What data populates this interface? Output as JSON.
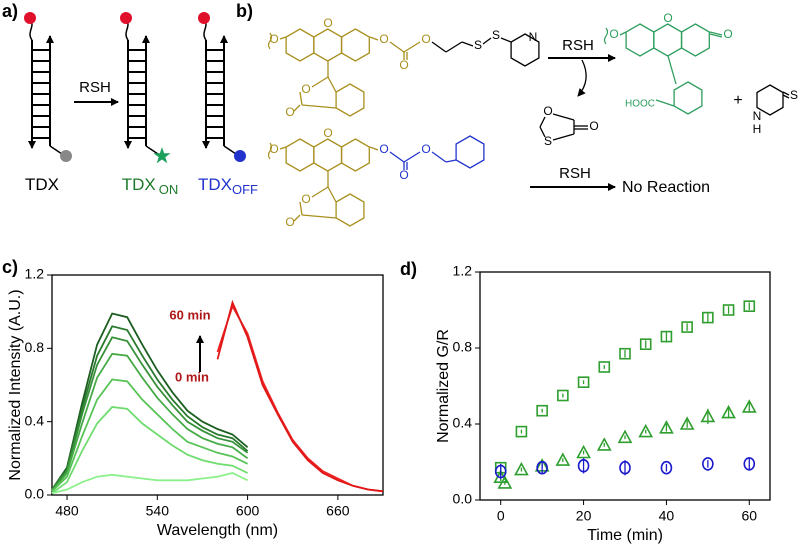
{
  "panels": {
    "a": "a)",
    "b": "b)",
    "c": "c)",
    "d": "d)"
  },
  "panel_a": {
    "arrow_label": "RSH",
    "labels": [
      {
        "main": "TDX"
      },
      {
        "main": "TDX",
        "sub": "ON"
      },
      {
        "main": "TDX",
        "sub": "OFF"
      }
    ]
  },
  "panel_b": {
    "arrow_label_1": "RSH",
    "arrow_label_2": "RSH",
    "no_reaction": "No Reaction",
    "hooc": "HOOC",
    "plus": "+",
    "atoms": [
      "O",
      "O",
      "O",
      "O",
      "O",
      "S",
      "S",
      "N",
      "O",
      "O",
      "O",
      "O",
      "O",
      "O",
      "O",
      "O",
      "O",
      "O",
      "O",
      "O",
      "O",
      "S",
      "O",
      "N",
      "H",
      "S"
    ]
  },
  "chart_data": [
    {
      "type": "line",
      "xlabel": "Wavelength (nm)",
      "ylabel": "Normalized Intensity (A.U.)",
      "annotations": [
        "60 min",
        "0 min"
      ],
      "x": [
        470,
        480,
        490,
        500,
        510,
        520,
        530,
        540,
        550,
        560,
        570,
        580,
        590,
        600,
        610,
        620,
        630,
        640,
        650,
        660,
        670,
        680,
        690
      ],
      "xlim": [
        470,
        690
      ],
      "xticks": [
        480,
        540,
        600,
        660
      ],
      "ylim": [
        0,
        1.2
      ],
      "yticks": [
        {
          "value": 0,
          "label": "0.0"
        },
        0.4,
        0.8,
        1.2
      ],
      "series": [
        {
          "color": "#1b5e20",
          "values": [
            0.03,
            0.15,
            0.5,
            0.82,
            0.99,
            0.97,
            0.82,
            0.68,
            0.56,
            0.46,
            0.4,
            0.36,
            0.33,
            0.26,
            null,
            null,
            null,
            null,
            null,
            null,
            null,
            null,
            null
          ]
        },
        {
          "color": "#2a7a2e",
          "values": [
            0.03,
            0.14,
            0.47,
            0.76,
            0.92,
            0.9,
            0.76,
            0.63,
            0.52,
            0.43,
            0.37,
            0.33,
            0.31,
            0.24,
            null,
            null,
            null,
            null,
            null,
            null,
            null,
            null,
            null
          ]
        },
        {
          "color": "#37913a",
          "values": [
            0.03,
            0.13,
            0.44,
            0.71,
            0.86,
            0.84,
            0.71,
            0.59,
            0.49,
            0.4,
            0.35,
            0.31,
            0.29,
            0.23,
            null,
            null,
            null,
            null,
            null,
            null,
            null,
            null,
            null
          ]
        },
        {
          "color": "#46aa46",
          "values": [
            0.02,
            0.12,
            0.39,
            0.64,
            0.77,
            0.76,
            0.64,
            0.53,
            0.44,
            0.36,
            0.31,
            0.28,
            0.26,
            0.2,
            null,
            null,
            null,
            null,
            null,
            null,
            null,
            null,
            null
          ]
        },
        {
          "color": "#58c458",
          "values": [
            0.02,
            0.1,
            0.32,
            0.52,
            0.63,
            0.62,
            0.52,
            0.44,
            0.36,
            0.29,
            0.26,
            0.23,
            0.21,
            0.17,
            null,
            null,
            null,
            null,
            null,
            null,
            null,
            null,
            null
          ]
        },
        {
          "color": "#6edc6e",
          "values": [
            0.01,
            0.07,
            0.24,
            0.39,
            0.48,
            0.47,
            0.39,
            0.33,
            0.27,
            0.22,
            0.19,
            0.17,
            0.16,
            0.12,
            null,
            null,
            null,
            null,
            null,
            null,
            null,
            null,
            null
          ]
        },
        {
          "color": "#8cf08c",
          "values": [
            0.01,
            0.03,
            0.07,
            0.1,
            0.11,
            0.1,
            0.09,
            0.08,
            0.08,
            0.08,
            0.09,
            0.1,
            0.12,
            0.08,
            null,
            null,
            null,
            null,
            null,
            null,
            null,
            null,
            null
          ]
        },
        {
          "color": "#ee2222",
          "values": [
            null,
            null,
            null,
            null,
            null,
            null,
            null,
            null,
            null,
            null,
            null,
            0.78,
            1.03,
            0.88,
            0.62,
            0.45,
            0.3,
            0.2,
            0.13,
            0.09,
            0.05,
            0.03,
            0.02
          ]
        },
        {
          "color": "#e01818",
          "values": [
            null,
            null,
            null,
            null,
            null,
            null,
            null,
            null,
            null,
            null,
            null,
            0.74,
            1.05,
            0.86,
            0.6,
            0.44,
            0.29,
            0.19,
            0.12,
            0.08,
            0.05,
            0.03,
            0.02
          ]
        }
      ]
    },
    {
      "type": "scatter",
      "xlabel": "Time (min)",
      "ylabel": "Normalized G/R",
      "xlim": [
        -5,
        65
      ],
      "xticks": [
        0,
        20,
        40,
        60
      ],
      "ylim": [
        0,
        1.2
      ],
      "yticks": [
        {
          "value": 0,
          "label": "0.0"
        },
        0.4,
        0.8,
        1.2
      ],
      "series": [
        {
          "marker": "square",
          "color": "#2e9e2e",
          "x": [
            0,
            5,
            10,
            15,
            20,
            25,
            30,
            35,
            40,
            45,
            50,
            55,
            60
          ],
          "values": [
            0.17,
            0.36,
            0.47,
            0.55,
            0.62,
            0.7,
            0.77,
            0.82,
            0.86,
            0.91,
            0.96,
            1.0,
            1.02
          ],
          "errors": [
            0.02,
            0.01,
            0.01,
            0.01,
            0.01,
            0.01,
            0.02,
            0.02,
            0.03,
            0.02,
            0.03,
            0.02,
            0.02
          ]
        },
        {
          "marker": "triangle",
          "color": "#2e9e2e",
          "x": [
            0,
            1,
            5,
            10,
            15,
            20,
            25,
            30,
            35,
            40,
            45,
            50,
            55,
            60
          ],
          "values": [
            0.12,
            0.09,
            0.16,
            0.18,
            0.21,
            0.25,
            0.29,
            0.33,
            0.36,
            0.38,
            0.4,
            0.44,
            0.46,
            0.49
          ],
          "errors": [
            0.02,
            0.01,
            0.01,
            0.01,
            0.01,
            0.01,
            0.01,
            0.01,
            0.01,
            0.02,
            0.02,
            0.04,
            0.03,
            0.03
          ]
        },
        {
          "marker": "circle",
          "color": "#1a1acc",
          "x": [
            0,
            10,
            20,
            30,
            40,
            50,
            60
          ],
          "values": [
            0.15,
            0.17,
            0.18,
            0.17,
            0.17,
            0.19,
            0.19
          ],
          "errors": [
            0.04,
            0.03,
            0.04,
            0.04,
            0.02,
            0.02,
            0.03
          ]
        }
      ]
    }
  ]
}
